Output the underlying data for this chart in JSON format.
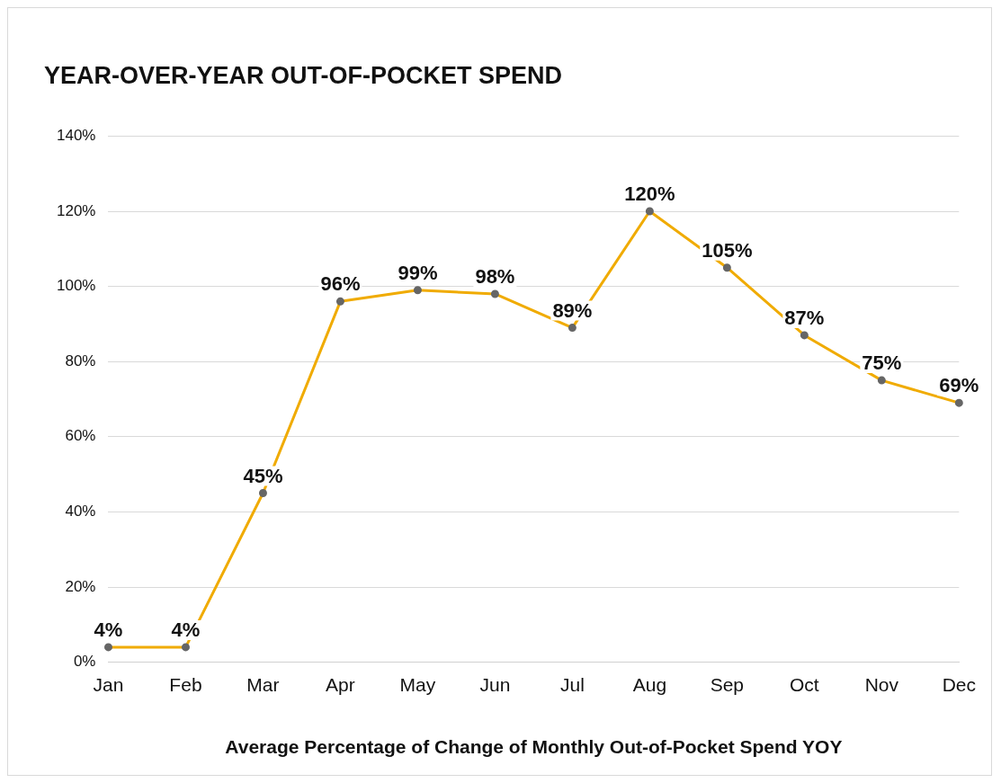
{
  "chart_data": {
    "type": "line",
    "title": "YEAR-OVER-YEAR OUT-OF-POCKET SPEND",
    "xlabel": "Average Percentage of Change of Monthly Out-of-Pocket Spend YOY",
    "categories": [
      "Jan",
      "Feb",
      "Mar",
      "Apr",
      "May",
      "Jun",
      "Jul",
      "Aug",
      "Sep",
      "Oct",
      "Nov",
      "Dec"
    ],
    "series": [
      {
        "color": "#f0ab00",
        "values": [
          4,
          4,
          45,
          96,
          99,
          98,
          89,
          120,
          105,
          87,
          75,
          69
        ],
        "value_labels": [
          "4%",
          "4%",
          "45%",
          "96%",
          "99%",
          "98%",
          "89%",
          "120%",
          "105%",
          "87%",
          "75%",
          "69%"
        ]
      }
    ],
    "ylim": [
      0,
      140
    ],
    "yticks": [
      {
        "value": 0,
        "label": "0%"
      },
      {
        "value": 20,
        "label": "20%"
      },
      {
        "value": 40,
        "label": "40%"
      },
      {
        "value": 60,
        "label": "60%"
      },
      {
        "value": 80,
        "label": "80%"
      },
      {
        "value": 100,
        "label": "100%"
      },
      {
        "value": 120,
        "label": "120%"
      },
      {
        "value": 140,
        "label": "140%"
      }
    ],
    "grid": "y",
    "legend": false,
    "marker": "circle",
    "line_style": "solid"
  }
}
